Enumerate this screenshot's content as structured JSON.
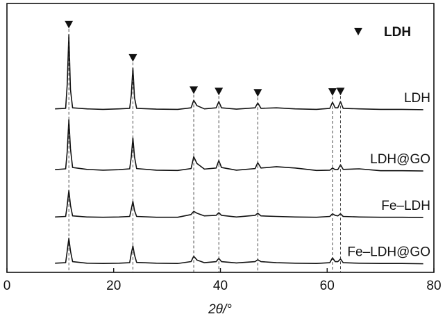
{
  "chart_data": {
    "type": "line",
    "x_label": "2θ/°",
    "xlim": [
      0,
      80
    ],
    "xticks": [
      0,
      20,
      40,
      60,
      80
    ],
    "ylim": [
      0,
      100
    ],
    "marker_label": "LDH",
    "reference_peaks": [
      11.6,
      23.6,
      35,
      39.7,
      47,
      61,
      62.5
    ],
    "x": [
      9,
      11,
      11.3,
      11.6,
      11.9,
      12.3,
      15,
      18,
      21,
      23,
      23.3,
      23.6,
      23.9,
      24.3,
      28,
      32,
      34.5,
      35,
      35.6,
      37,
      39.2,
      39.7,
      40.2,
      43,
      46.5,
      47,
      47.6,
      50.5,
      54,
      58,
      60.5,
      61,
      61.5,
      62,
      62.5,
      63,
      66,
      70,
      74,
      78
    ],
    "series": [
      {
        "name": "LDH",
        "color": "#111111",
        "values": [
          60.8,
          61,
          70,
          88.4,
          68,
          61.2,
          60.8,
          60.6,
          60.8,
          61,
          66,
          76,
          65,
          61,
          60.7,
          60.6,
          61.2,
          64,
          62,
          60.8,
          61.2,
          63.5,
          61.2,
          60.7,
          61.2,
          63,
          61,
          61.2,
          60.8,
          60.6,
          61,
          63.3,
          61.2,
          61.2,
          63.5,
          61,
          60.8,
          60.6,
          60.6,
          60.5
        ]
      },
      {
        "name": "LDH@GO",
        "color": "#111111",
        "values": [
          38.2,
          38.5,
          45,
          56.8,
          46,
          39,
          38.3,
          38,
          38.2,
          38.5,
          43,
          50,
          43,
          38.6,
          38,
          37.9,
          38.6,
          43,
          40.5,
          38.4,
          38.8,
          41.6,
          39,
          38,
          38.6,
          40.8,
          38.8,
          39.3,
          38.8,
          37.9,
          38,
          38.8,
          38.2,
          38.2,
          40,
          38.3,
          38.5,
          37.8,
          37.8,
          37.7
        ]
      },
      {
        "name": "Fe–LDH",
        "color": "#111111",
        "values": [
          20.6,
          20.8,
          25,
          30.5,
          25,
          21,
          20.6,
          20.5,
          20.6,
          20.8,
          23.5,
          26.4,
          23,
          20.8,
          20.5,
          20.5,
          21.5,
          22.7,
          22,
          21,
          21.2,
          22.2,
          21.2,
          20.6,
          21.2,
          22,
          21,
          20.8,
          20.6,
          20.5,
          20.8,
          21.8,
          21.2,
          21,
          21.8,
          20.8,
          20.6,
          20.5,
          20.5,
          20.4
        ]
      },
      {
        "name": "Fe–LDH@GO",
        "color": "#111111",
        "values": [
          3.4,
          3.6,
          8,
          12.7,
          8,
          4,
          3.4,
          3.3,
          3.4,
          3.6,
          7,
          9.8,
          6.5,
          3.7,
          3.4,
          3.3,
          4,
          6,
          4.6,
          3.6,
          4,
          5.2,
          4,
          3.5,
          4,
          4.7,
          4,
          3.6,
          3.4,
          3.3,
          3.6,
          5.4,
          4,
          4,
          5,
          3.6,
          3.4,
          3.3,
          3.3,
          3.2
        ]
      }
    ]
  }
}
